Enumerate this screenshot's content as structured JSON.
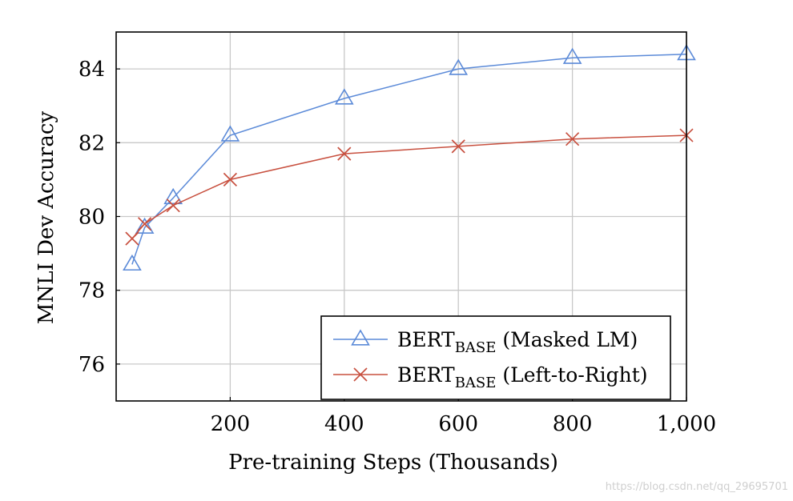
{
  "chart_data": {
    "type": "line",
    "xlabel": "Pre-training Steps (Thousands)",
    "ylabel": "MNLI Dev Accuracy",
    "xlim": [
      0,
      1000
    ],
    "ylim": [
      75,
      85
    ],
    "x_ticks": [
      200,
      400,
      600,
      800,
      1000
    ],
    "x_tick_labels": [
      "200",
      "400",
      "600",
      "800",
      "1,000"
    ],
    "y_ticks": [
      76,
      78,
      80,
      82,
      84
    ],
    "y_tick_labels": [
      "76",
      "78",
      "80",
      "82",
      "84"
    ],
    "grid": true,
    "legend_position": "bottom-right",
    "series": [
      {
        "name": "BERTBASE (Masked LM)",
        "legend_main": "BERT",
        "legend_sub": "BASE",
        "legend_rest": " (Masked LM)",
        "color": "#5b8ad8",
        "marker": "triangle",
        "x": [
          28,
          50,
          100,
          200,
          400,
          600,
          800,
          1000
        ],
        "y": [
          78.7,
          79.7,
          80.5,
          82.2,
          83.2,
          84.0,
          84.3,
          84.4
        ]
      },
      {
        "name": "BERTBASE (Left-to-Right)",
        "legend_main": "BERT",
        "legend_sub": "BASE",
        "legend_rest": " (Left-to-Right)",
        "color": "#c8503f",
        "marker": "cross",
        "x": [
          28,
          50,
          100,
          200,
          400,
          600,
          800,
          1000
        ],
        "y": [
          79.4,
          79.8,
          80.3,
          81.0,
          81.7,
          81.9,
          82.1,
          82.2
        ]
      }
    ]
  },
  "watermark": "https://blog.csdn.net/qq_29695701"
}
